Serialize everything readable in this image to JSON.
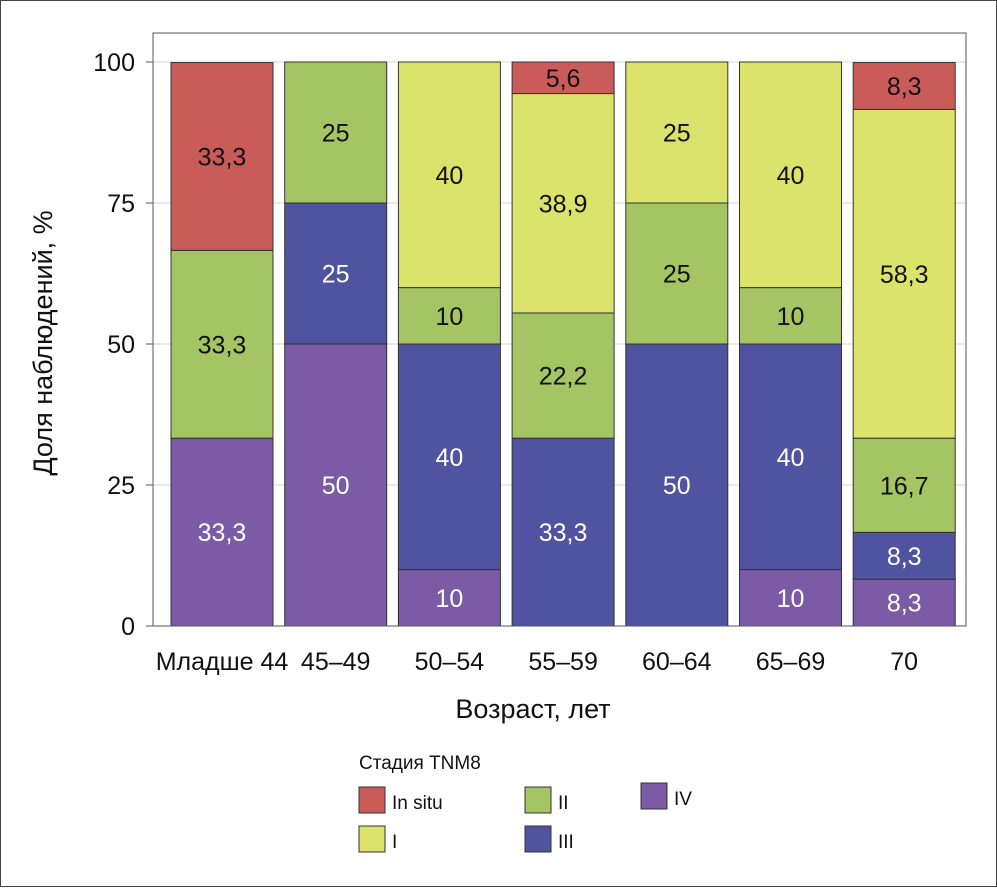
{
  "chart_data": {
    "type": "bar",
    "stacked": true,
    "title": "",
    "xlabel": "Возраст, лет",
    "ylabel": "Доля наблюдений, %",
    "ylim": [
      0,
      100
    ],
    "yticks": [
      "0",
      "25",
      "50",
      "75",
      "100"
    ],
    "grid": true,
    "categories": [
      "Младше 44",
      "45–49",
      "50–54",
      "55–59",
      "60–64",
      "65–69",
      "70"
    ],
    "series": [
      {
        "name": "IV",
        "color": "#7b5aa6",
        "label_color": "#ffffff",
        "values": [
          33.3,
          50,
          10,
          0,
          0,
          10,
          8.3
        ],
        "labels": [
          "33,3",
          "50",
          "10",
          "",
          "",
          "10",
          "8,3"
        ]
      },
      {
        "name": "III",
        "color": "#5053a0",
        "label_color": "#ffffff",
        "values": [
          0,
          25,
          40,
          33.3,
          50,
          40,
          8.3
        ],
        "labels": [
          "",
          "25",
          "40",
          "33,3",
          "50",
          "40",
          "8,3"
        ]
      },
      {
        "name": "II",
        "color": "#a5c463",
        "label_color": "#111111",
        "values": [
          33.3,
          25,
          10,
          22.2,
          25,
          10,
          16.7
        ],
        "labels": [
          "33,3",
          "25",
          "10",
          "22,2",
          "25",
          "10",
          "16,7"
        ]
      },
      {
        "name": "I",
        "color": "#dce36c",
        "label_color": "#111111",
        "values": [
          0,
          0,
          40,
          38.9,
          25,
          40,
          58.3
        ],
        "labels": [
          "",
          "",
          "40",
          "38,9",
          "25",
          "40",
          "58,3"
        ]
      },
      {
        "name": "In situ",
        "color": "#c95c58",
        "label_color": "#111111",
        "values": [
          33.3,
          0,
          0,
          5.6,
          0,
          0,
          8.3
        ],
        "labels": [
          "33,3",
          "",
          "",
          "5,6",
          "",
          "",
          "8,3"
        ]
      }
    ],
    "legend": {
      "title": "Стадия TNM8",
      "placement": "bottom",
      "entries": [
        {
          "label": "In situ",
          "color": "#c95c58"
        },
        {
          "label": "I",
          "color": "#dce36c"
        },
        {
          "label": "II",
          "color": "#a5c463"
        },
        {
          "label": "III",
          "color": "#5053a0"
        },
        {
          "label": "IV",
          "color": "#7b5aa6"
        }
      ]
    }
  }
}
